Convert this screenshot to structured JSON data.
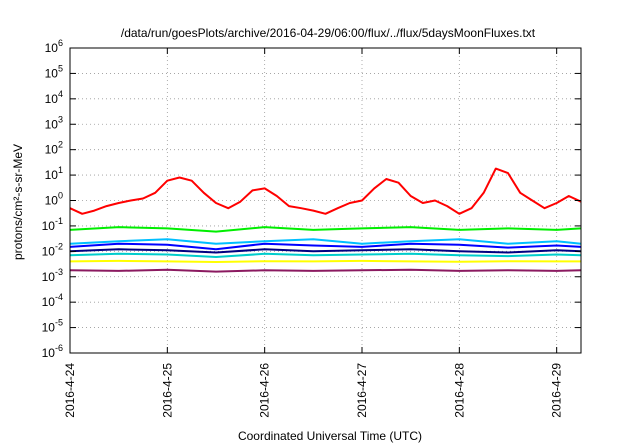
{
  "chart_data": {
    "type": "line",
    "title": "/data/run/goesPlots/archive/2016-04-29/06:00/flux/../flux/5daysMoonFluxes.txt",
    "xlabel": "Coordinated Universal Time (UTC)",
    "ylabel": "protons/cm²-s-sr-MeV",
    "y_scale": "log",
    "ylim": [
      1e-06,
      1000000.0
    ],
    "xlim": [
      "2016-04-24T00:00",
      "2016-04-29T06:00"
    ],
    "x_ticks": [
      "2016-4-24",
      "2016-4-25",
      "2016-4-26",
      "2016-4-27",
      "2016-4-28",
      "2016-4-29"
    ],
    "y_ticks": [
      {
        "base": "10",
        "exp": "-6",
        "value": 1e-06
      },
      {
        "base": "10",
        "exp": "-5",
        "value": 1e-05
      },
      {
        "base": "10",
        "exp": "-4",
        "value": 0.0001
      },
      {
        "base": "10",
        "exp": "-3",
        "value": 0.001
      },
      {
        "base": "10",
        "exp": "-2",
        "value": 0.01
      },
      {
        "base": "10",
        "exp": "-1",
        "value": 0.1
      },
      {
        "base": "10",
        "exp": "0",
        "value": 1
      },
      {
        "base": "10",
        "exp": "1",
        "value": 10
      },
      {
        "base": "10",
        "exp": "2",
        "value": 100
      },
      {
        "base": "10",
        "exp": "3",
        "value": 1000
      },
      {
        "base": "10",
        "exp": "4",
        "value": 10000
      },
      {
        "base": "10",
        "exp": "5",
        "value": 100000
      },
      {
        "base": "10",
        "exp": "6",
        "value": 1000000
      }
    ],
    "grid": true,
    "legend": "none",
    "series": [
      {
        "color": "#ff0000",
        "x": [
          "2016-04-24T00:00",
          "2016-04-24T03:00",
          "2016-04-24T06:00",
          "2016-04-24T09:00",
          "2016-04-24T12:00",
          "2016-04-24T15:00",
          "2016-04-24T18:00",
          "2016-04-24T21:00",
          "2016-04-25T00:00",
          "2016-04-25T03:00",
          "2016-04-25T06:00",
          "2016-04-25T09:00",
          "2016-04-25T12:00",
          "2016-04-25T15:00",
          "2016-04-25T18:00",
          "2016-04-25T21:00",
          "2016-04-26T00:00",
          "2016-04-26T03:00",
          "2016-04-26T06:00",
          "2016-04-26T09:00",
          "2016-04-26T12:00",
          "2016-04-26T15:00",
          "2016-04-26T18:00",
          "2016-04-26T21:00",
          "2016-04-27T00:00",
          "2016-04-27T03:00",
          "2016-04-27T06:00",
          "2016-04-27T09:00",
          "2016-04-27T12:00",
          "2016-04-27T15:00",
          "2016-04-27T18:00",
          "2016-04-27T21:00",
          "2016-04-28T00:00",
          "2016-04-28T03:00",
          "2016-04-28T06:00",
          "2016-04-28T09:00",
          "2016-04-28T12:00",
          "2016-04-28T15:00",
          "2016-04-28T18:00",
          "2016-04-28T21:00",
          "2016-04-29T00:00",
          "2016-04-29T03:00",
          "2016-04-29T06:00"
        ],
        "y": [
          0.5,
          0.3,
          0.4,
          0.6,
          0.8,
          1.0,
          1.2,
          2.0,
          6.0,
          8.0,
          6.0,
          2.0,
          0.8,
          0.5,
          0.9,
          2.5,
          3.0,
          1.5,
          0.6,
          0.5,
          0.4,
          0.3,
          0.5,
          0.8,
          1.0,
          3.0,
          7.0,
          5.0,
          1.5,
          0.8,
          1.0,
          0.6,
          0.3,
          0.5,
          2.0,
          18.0,
          12.0,
          2.0,
          1.0,
          0.5,
          0.8,
          1.5,
          0.9
        ]
      },
      {
        "color": "#00ee00",
        "x": [
          "2016-04-24T00:00",
          "2016-04-24T12:00",
          "2016-04-25T00:00",
          "2016-04-25T12:00",
          "2016-04-26T00:00",
          "2016-04-26T12:00",
          "2016-04-27T00:00",
          "2016-04-27T12:00",
          "2016-04-28T00:00",
          "2016-04-28T12:00",
          "2016-04-29T00:00",
          "2016-04-29T06:00"
        ],
        "y": [
          0.07,
          0.09,
          0.08,
          0.06,
          0.09,
          0.07,
          0.08,
          0.09,
          0.07,
          0.08,
          0.07,
          0.08
        ]
      },
      {
        "color": "#00bfff",
        "x": [
          "2016-04-24T00:00",
          "2016-04-24T12:00",
          "2016-04-25T00:00",
          "2016-04-25T12:00",
          "2016-04-26T00:00",
          "2016-04-26T12:00",
          "2016-04-27T00:00",
          "2016-04-27T12:00",
          "2016-04-28T00:00",
          "2016-04-28T12:00",
          "2016-04-29T00:00",
          "2016-04-29T06:00"
        ],
        "y": [
          0.02,
          0.025,
          0.03,
          0.02,
          0.025,
          0.03,
          0.02,
          0.025,
          0.03,
          0.02,
          0.025,
          0.02
        ]
      },
      {
        "color": "#0000ff",
        "x": [
          "2016-04-24T00:00",
          "2016-04-24T12:00",
          "2016-04-25T00:00",
          "2016-04-25T12:00",
          "2016-04-26T00:00",
          "2016-04-26T12:00",
          "2016-04-27T00:00",
          "2016-04-27T12:00",
          "2016-04-28T00:00",
          "2016-04-28T12:00",
          "2016-04-29T00:00",
          "2016-04-29T06:00"
        ],
        "y": [
          0.015,
          0.02,
          0.018,
          0.012,
          0.02,
          0.017,
          0.015,
          0.02,
          0.018,
          0.014,
          0.017,
          0.015
        ]
      },
      {
        "color": "#000080",
        "x": [
          "2016-04-24T00:00",
          "2016-04-24T12:00",
          "2016-04-25T00:00",
          "2016-04-25T12:00",
          "2016-04-26T00:00",
          "2016-04-26T12:00",
          "2016-04-27T00:00",
          "2016-04-27T12:00",
          "2016-04-28T00:00",
          "2016-04-28T12:00",
          "2016-04-29T00:00",
          "2016-04-29T06:00"
        ],
        "y": [
          0.01,
          0.012,
          0.011,
          0.009,
          0.012,
          0.01,
          0.011,
          0.012,
          0.01,
          0.009,
          0.011,
          0.01
        ]
      },
      {
        "color": "#00cccc",
        "x": [
          "2016-04-24T00:00",
          "2016-04-24T12:00",
          "2016-04-25T00:00",
          "2016-04-25T12:00",
          "2016-04-26T00:00",
          "2016-04-26T12:00",
          "2016-04-27T00:00",
          "2016-04-27T12:00",
          "2016-04-28T00:00",
          "2016-04-28T12:00",
          "2016-04-29T00:00",
          "2016-04-29T06:00"
        ],
        "y": [
          0.007,
          0.008,
          0.0075,
          0.006,
          0.008,
          0.007,
          0.0075,
          0.008,
          0.007,
          0.0065,
          0.0075,
          0.007
        ]
      },
      {
        "color": "#ffff00",
        "x": [
          "2016-04-24T00:00",
          "2016-04-24T12:00",
          "2016-04-25T00:00",
          "2016-04-25T12:00",
          "2016-04-26T00:00",
          "2016-04-26T12:00",
          "2016-04-27T00:00",
          "2016-04-27T12:00",
          "2016-04-28T00:00",
          "2016-04-28T12:00",
          "2016-04-29T00:00",
          "2016-04-29T06:00"
        ],
        "y": [
          0.004,
          0.0042,
          0.004,
          0.0038,
          0.0041,
          0.004,
          0.0042,
          0.004,
          0.0039,
          0.0041,
          0.004,
          0.004
        ]
      },
      {
        "color": "#8b1a60",
        "x": [
          "2016-04-24T00:00",
          "2016-04-24T12:00",
          "2016-04-25T00:00",
          "2016-04-25T12:00",
          "2016-04-26T00:00",
          "2016-04-26T12:00",
          "2016-04-27T00:00",
          "2016-04-27T12:00",
          "2016-04-28T00:00",
          "2016-04-28T12:00",
          "2016-04-29T00:00",
          "2016-04-29T06:00"
        ],
        "y": [
          0.0018,
          0.0017,
          0.0019,
          0.0016,
          0.0018,
          0.0017,
          0.0018,
          0.0019,
          0.0017,
          0.0018,
          0.0017,
          0.0018
        ]
      }
    ]
  }
}
